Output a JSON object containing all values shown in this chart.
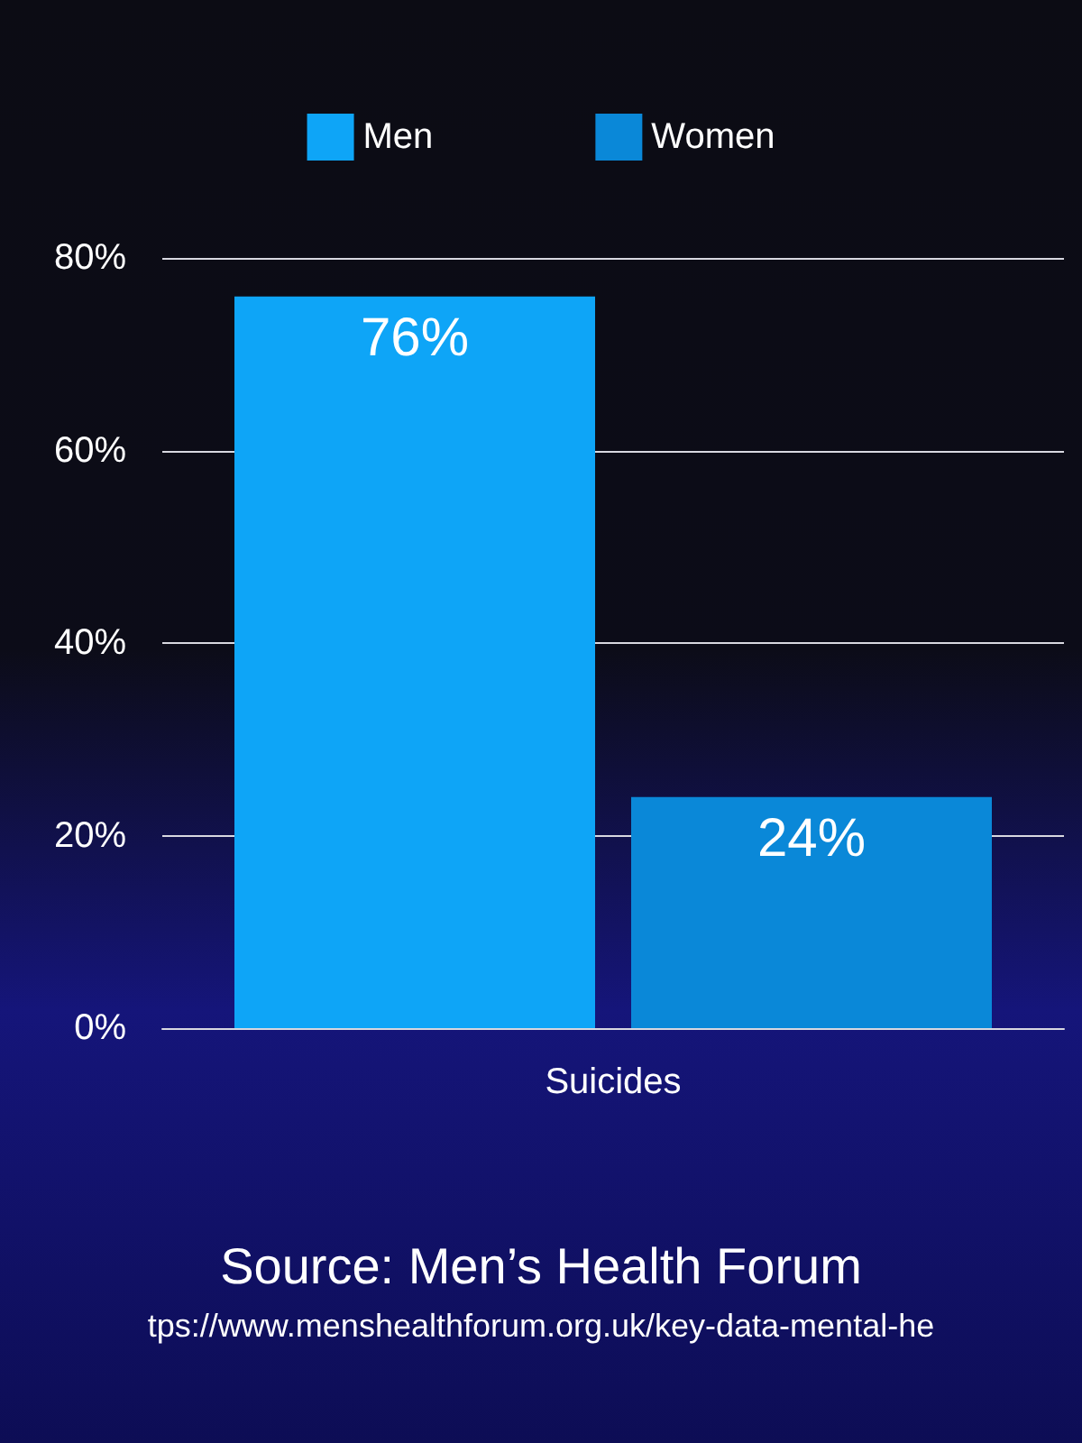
{
  "chart_data": {
    "type": "bar",
    "categories": [
      "Suicides"
    ],
    "series": [
      {
        "name": "Men",
        "color": "#0ea5f7",
        "values": [
          76
        ],
        "value_labels": [
          "76%"
        ]
      },
      {
        "name": "Women",
        "color": "#0a88d8",
        "values": [
          24
        ],
        "value_labels": [
          "24%"
        ]
      }
    ],
    "ylim": [
      0,
      80
    ],
    "yticks": [
      {
        "value": 0,
        "label": "0%"
      },
      {
        "value": 20,
        "label": "20%"
      },
      {
        "value": 40,
        "label": "40%"
      },
      {
        "value": 60,
        "label": "60%"
      },
      {
        "value": 80,
        "label": "80%"
      }
    ],
    "grid": "y",
    "legend": "top",
    "annotations": [
      "Source: Men’s Health Forum",
      "tps://www.menshealthforum.org.uk/key-data-mental-he"
    ]
  }
}
